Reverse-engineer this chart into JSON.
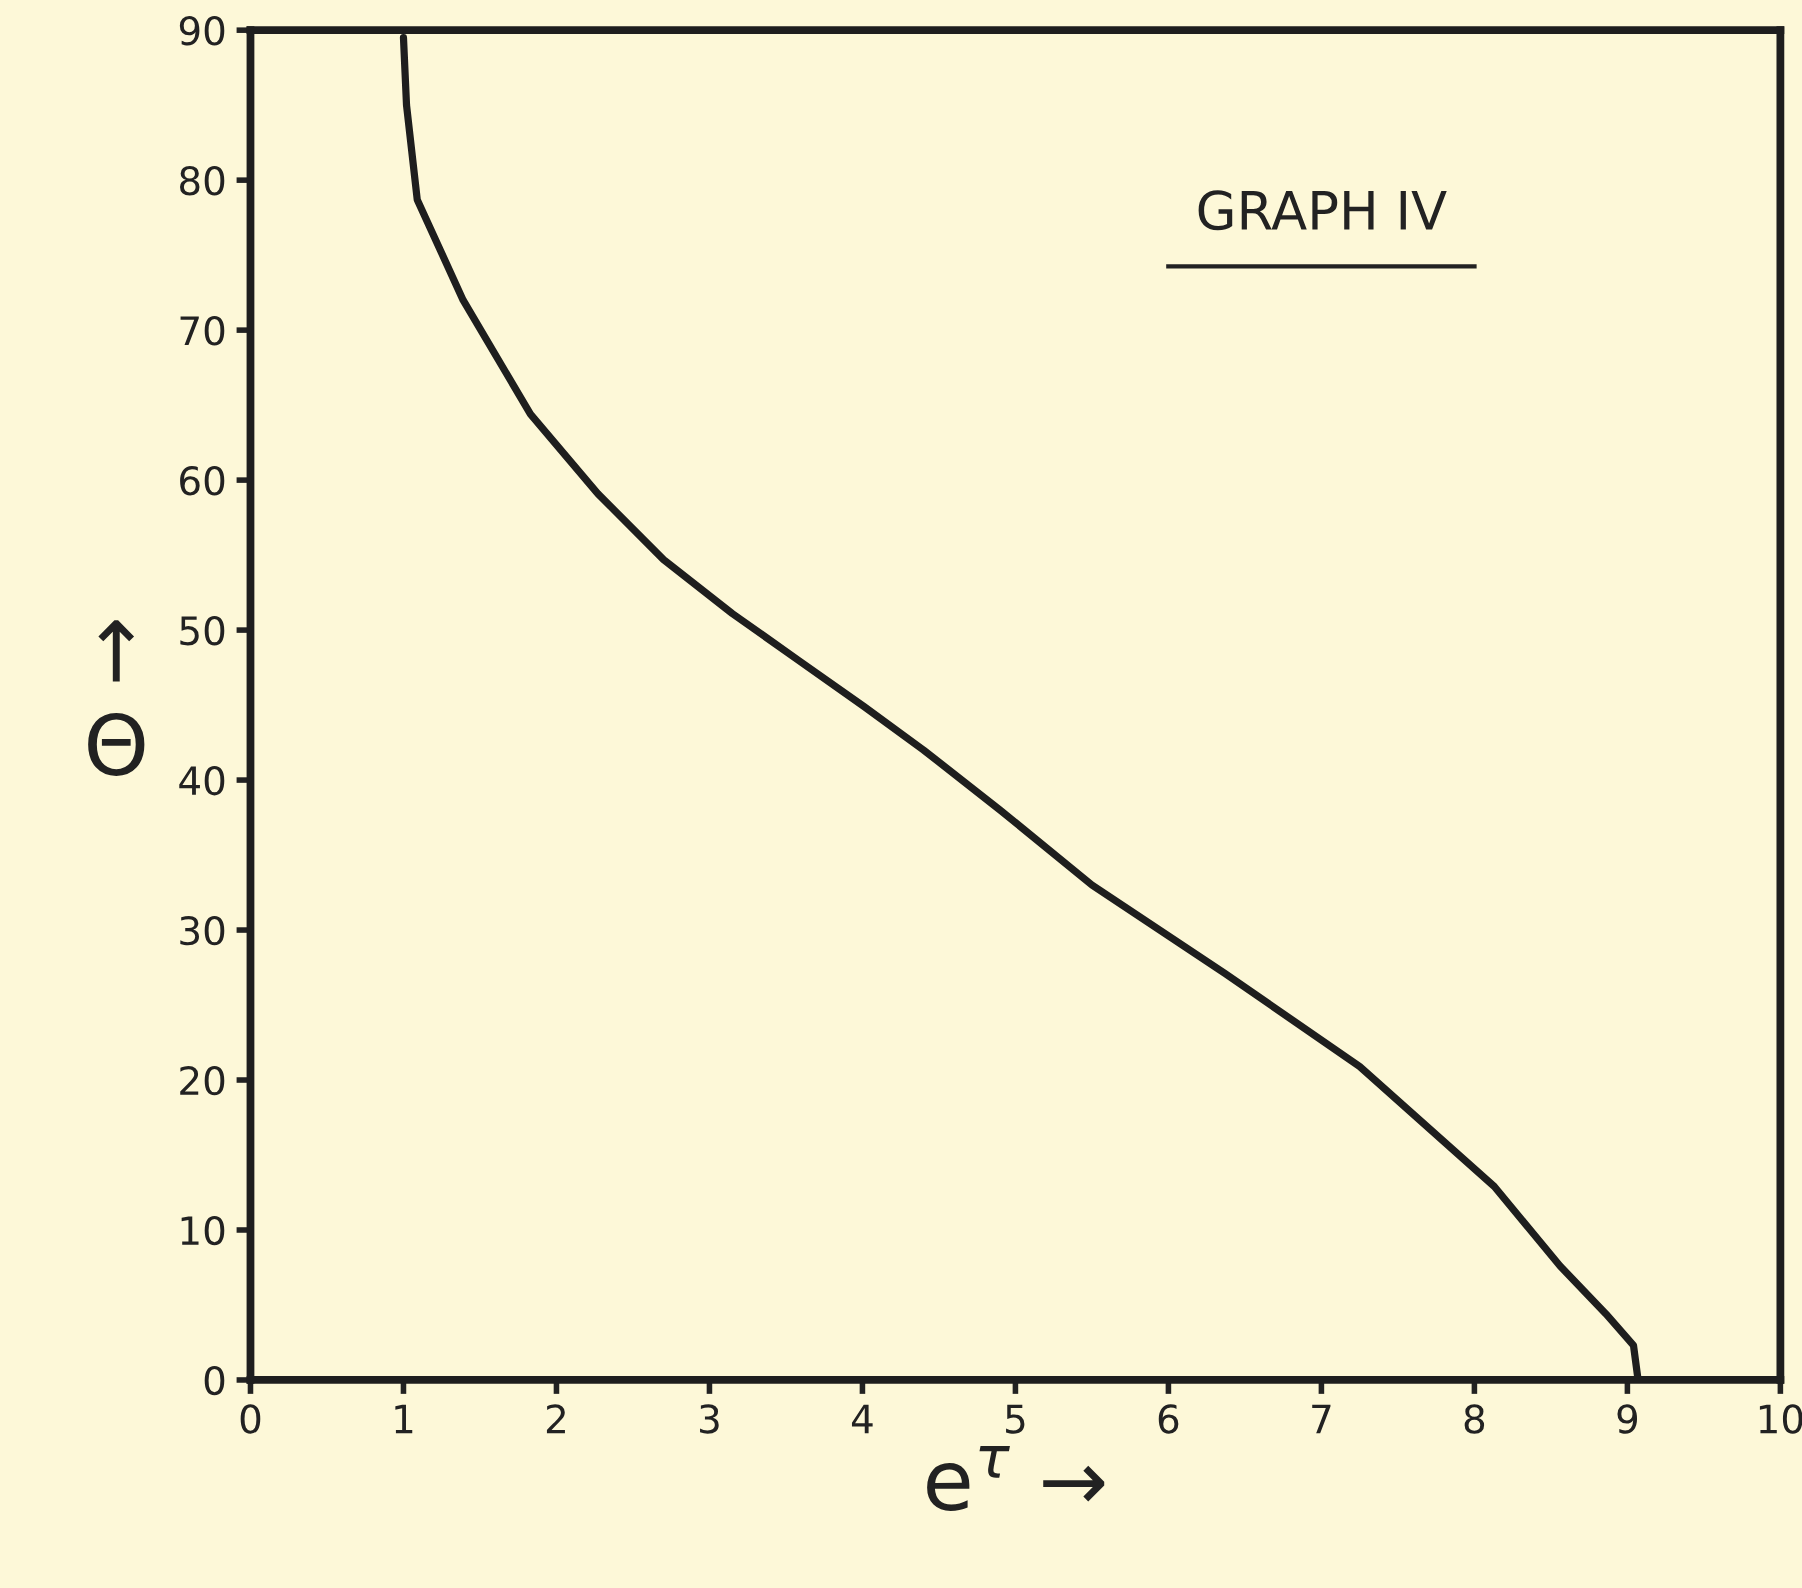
{
  "chart_data": {
    "type": "line",
    "title": "GRAPH IV",
    "xlabel": "e$^{τ}$ →",
    "ylabel": "↑\nΘ",
    "xlim": [
      0,
      10
    ],
    "ylim": [
      0,
      90
    ],
    "xticks": [
      0,
      1,
      2,
      3,
      4,
      5,
      6,
      7,
      8,
      9,
      10
    ],
    "yticks": [
      0,
      10,
      20,
      30,
      40,
      50,
      60,
      70,
      80,
      90
    ],
    "grid": false,
    "marker": "none",
    "line_style": "solid",
    "series": [
      {
        "color": "#1e1e1e",
        "x": [
          1.0,
          1.02,
          1.09,
          1.39,
          1.83,
          2.27,
          2.7,
          3.15,
          3.58,
          4.01,
          4.4,
          4.9,
          5.5,
          6.37,
          7.25,
          8.13,
          8.56,
          8.86,
          9.04,
          9.07
        ],
        "values": [
          89.5,
          85,
          78.7,
          72,
          64.4,
          59.1,
          54.7,
          51.1,
          48,
          44.9,
          42,
          38,
          33,
          27.1,
          20.9,
          12.9,
          7.6,
          4.4,
          2.3,
          0
        ]
      }
    ]
  }
}
